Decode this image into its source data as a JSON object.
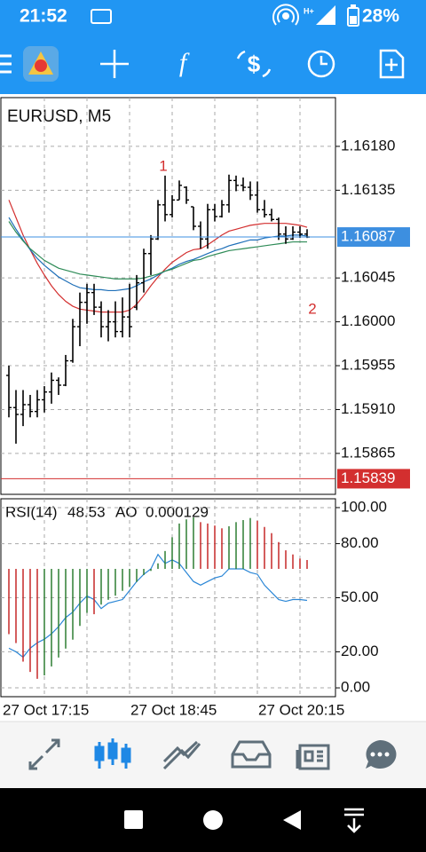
{
  "status_bar": {
    "time": "21:52",
    "battery": "28%"
  },
  "chart_data": [
    {
      "type": "candlestick",
      "title": "EURUSD, M5",
      "open": [
        1.15945,
        1.15912,
        1.15905,
        1.15915,
        1.15908,
        1.1592,
        1.15928,
        1.1594,
        1.15935,
        1.1596,
        1.15995,
        1.1602,
        1.1603,
        1.16015,
        1.15995,
        1.16,
        1.1599,
        1.16005,
        1.16015,
        1.1604,
        1.1607,
        1.16085,
        1.1612,
        1.1611,
        1.16125,
        1.16138,
        1.16118,
        1.16098,
        1.16085,
        1.16115,
        1.16108,
        1.1612,
        1.16145,
        1.1614,
        1.16138,
        1.1613,
        1.16115,
        1.1611,
        1.16105,
        1.1609,
        1.16085,
        1.16092,
        1.1609
      ],
      "high": [
        1.15955,
        1.1593,
        1.1593,
        1.15925,
        1.1593,
        1.15934,
        1.15948,
        1.15943,
        1.15966,
        1.16003,
        1.1603,
        1.16039,
        1.16039,
        1.16021,
        1.16012,
        1.16021,
        1.16025,
        1.16039,
        1.16048,
        1.16075,
        1.16089,
        1.16125,
        1.1615,
        1.1613,
        1.16145,
        1.16139,
        1.16118,
        1.16103,
        1.16121,
        1.16121,
        1.16125,
        1.16151,
        1.1615,
        1.16148,
        1.16144,
        1.16144,
        1.16125,
        1.16116,
        1.16107,
        1.16098,
        1.16098,
        1.16098,
        1.16095
      ],
      "low": [
        1.15902,
        1.15875,
        1.15893,
        1.15902,
        1.15902,
        1.15907,
        1.15916,
        1.15925,
        1.15934,
        1.15958,
        1.15975,
        1.15998,
        1.16007,
        1.15984,
        1.1598,
        1.15984,
        1.15984,
        1.15984,
        1.16012,
        1.1603,
        1.16048,
        1.16084,
        1.16103,
        1.16107,
        1.16125,
        1.16121,
        1.16094,
        1.16075,
        1.16075,
        1.16103,
        1.16107,
        1.16112,
        1.16134,
        1.16134,
        1.16125,
        1.16112,
        1.16107,
        1.16103,
        1.16084,
        1.1608,
        1.16084,
        1.16086,
        1.16086
      ],
      "close": [
        1.15912,
        1.15905,
        1.15915,
        1.15908,
        1.1592,
        1.15928,
        1.1594,
        1.15935,
        1.1596,
        1.15995,
        1.1602,
        1.1603,
        1.16015,
        1.15995,
        1.16,
        1.1599,
        1.16005,
        1.15995,
        1.1604,
        1.1607,
        1.16085,
        1.1612,
        1.1611,
        1.16125,
        1.1614,
        1.16125,
        1.16098,
        1.16085,
        1.16115,
        1.16108,
        1.1612,
        1.16145,
        1.1614,
        1.16138,
        1.1613,
        1.16115,
        1.1611,
        1.16105,
        1.1609,
        1.16085,
        1.16092,
        1.1609,
        1.16087
      ],
      "candle_color": "#000000",
      "series": [
        {
          "color": "#d32f2f",
          "values": [
            1.16125,
            1.16107,
            1.16089,
            1.16074,
            1.1606,
            1.16048,
            1.16037,
            1.16028,
            1.16021,
            1.16016,
            1.16013,
            1.16012,
            1.16011,
            1.1601,
            1.1601,
            1.1601,
            1.1601,
            1.16012,
            1.16018,
            1.16027,
            1.16037,
            1.16046,
            1.16054,
            1.16061,
            1.16066,
            1.16071,
            1.16074,
            1.16075,
            1.16079,
            1.16084,
            1.16089,
            1.16093,
            1.16095,
            1.16097,
            1.16099,
            1.161,
            1.16101,
            1.16101,
            1.16101,
            1.16101,
            1.161,
            1.16099,
            1.16097
          ]
        },
        {
          "color": "#1e6fb8",
          "values": [
            1.16107,
            1.16095,
            1.16084,
            1.16074,
            1.16065,
            1.16058,
            1.16052,
            1.16046,
            1.16042,
            1.16038,
            1.16035,
            1.16034,
            1.16033,
            1.16033,
            1.16032,
            1.16032,
            1.16033,
            1.16034,
            1.16037,
            1.16041,
            1.16044,
            1.16048,
            1.16052,
            1.16055,
            1.16059,
            1.16062,
            1.16064,
            1.16067,
            1.1607,
            1.16073,
            1.16075,
            1.16078,
            1.1608,
            1.16082,
            1.16084,
            1.16084,
            1.16086,
            1.16087,
            1.16088,
            1.16088,
            1.16089,
            1.16089,
            1.16088
          ]
        },
        {
          "color": "#2e8b57",
          "values": [
            1.16103,
            1.16092,
            1.16083,
            1.16075,
            1.16069,
            1.16063,
            1.16059,
            1.16055,
            1.16053,
            1.16051,
            1.16049,
            1.16048,
            1.16047,
            1.16046,
            1.16045,
            1.16044,
            1.16044,
            1.16044,
            1.16044,
            1.16045,
            1.16047,
            1.16049,
            1.16052,
            1.16054,
            1.16057,
            1.1606,
            1.16063,
            1.16064,
            1.16067,
            1.16069,
            1.16071,
            1.16073,
            1.16074,
            1.16075,
            1.16076,
            1.16077,
            1.16078,
            1.16079,
            1.1608,
            1.16081,
            1.16082,
            1.16082,
            1.16082
          ]
        }
      ],
      "ylim": [
        1.15823,
        1.1623
      ],
      "yticks": [
        {
          "value": 1.1618,
          "label": "1.16180"
        },
        {
          "value": 1.16135,
          "label": "1.16135"
        },
        {
          "value": 1.16045,
          "label": "1.16045"
        },
        {
          "value": 1.16,
          "label": "1.16000"
        },
        {
          "value": 1.15955,
          "label": "1.15955"
        },
        {
          "value": 1.1591,
          "label": "1.15910"
        },
        {
          "value": 1.15865,
          "label": "1.15865"
        }
      ],
      "grid": true,
      "price_lines": [
        {
          "value": 1.16087,
          "color": "#3d8fe0"
        },
        {
          "value": 1.15839,
          "color": "#d32f2f"
        }
      ],
      "annotations": [
        "1",
        "2"
      ],
      "xtick_labels": [
        "27 Oct 17:15",
        "27 Oct 18:45",
        "27 Oct 20:15"
      ]
    },
    {
      "type": "indicator",
      "series": [
        {
          "name": "RSI(14)",
          "color": "#2a86d6",
          "values": [
            22,
            20,
            17,
            22,
            25,
            27,
            30,
            34,
            39,
            42,
            47,
            51,
            49,
            44,
            47,
            48,
            49,
            54,
            59,
            63,
            66,
            74,
            69,
            71,
            69,
            64,
            59,
            57,
            59,
            61,
            62,
            66,
            66,
            66,
            64,
            63,
            57,
            53,
            49,
            48,
            49,
            49,
            48.53
          ]
        },
        {
          "name": "AO",
          "axis": "y2",
          "up_color": "#2e7d32",
          "down_color": "#c62828",
          "values": [
            -0.00095,
            -0.00108,
            -0.00135,
            -0.0015,
            -0.0016,
            -0.00155,
            -0.00142,
            -0.00129,
            -0.00116,
            -0.00103,
            -0.00083,
            -0.00064,
            -0.00066,
            -0.00052,
            -0.00045,
            -0.00039,
            -0.00032,
            -0.00026,
            -0.00019,
            -9e-05,
            -3e-05,
            8e-05,
            0.00026,
            0.00046,
            0.00066,
            0.00072,
            0.00075,
            0.00068,
            0.00066,
            0.00063,
            0.00059,
            0.00062,
            0.00068,
            0.00071,
            0.00074,
            0.0007,
            0.00061,
            0.00052,
            0.00039,
            0.00027,
            0.00021,
            0.00015,
            0.000129
          ]
        }
      ],
      "ylim": [
        -4.9,
        104.9
      ],
      "yticks": [
        {
          "value": 100,
          "label": "100.00"
        },
        {
          "value": 80,
          "label": "80.00"
        },
        {
          "value": 50,
          "label": "50.00"
        },
        {
          "value": 20,
          "label": "20.00"
        },
        {
          "value": 0,
          "label": "0.00"
        }
      ],
      "y2lim": [
        -0.00186,
        0.00102
      ],
      "grid": true
    }
  ]
}
